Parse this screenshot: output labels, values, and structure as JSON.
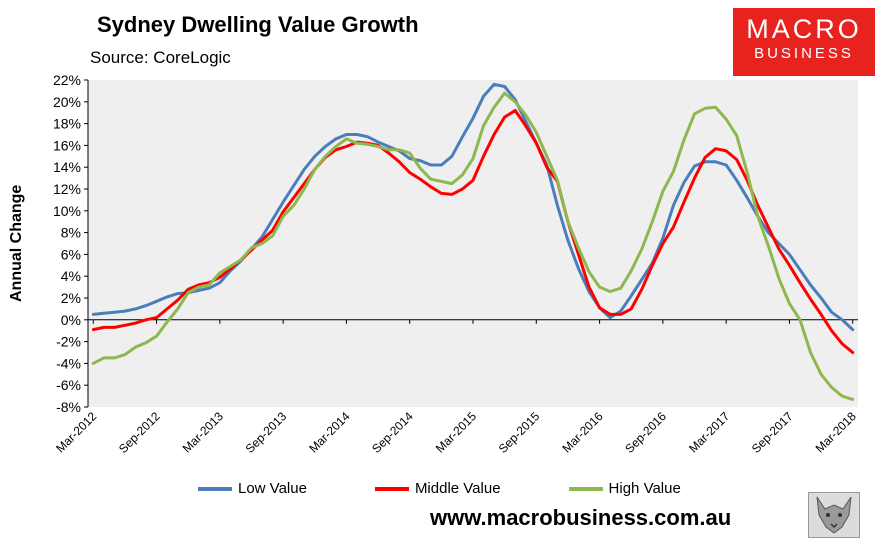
{
  "header": {
    "title": "Sydney Dwelling Value Growth",
    "subtitle": "Source: CoreLogic"
  },
  "logo": {
    "line1": "MACRO",
    "line2": "BUSINESS"
  },
  "footer": {
    "website": "www.macrobusiness.com.au"
  },
  "colors": {
    "low": "#4a7ebb",
    "middle": "#ff0000",
    "high": "#8cb84f",
    "brand": "#e8231f"
  },
  "chart_data": {
    "type": "line",
    "title": "Sydney Dwelling Value Growth",
    "ylabel": "Annual Change",
    "xlabel": "",
    "ylim": [
      -8,
      22
    ],
    "yticks": [
      "22%",
      "20%",
      "18%",
      "16%",
      "14%",
      "12%",
      "10%",
      "8%",
      "6%",
      "4%",
      "2%",
      "0%",
      "-2%",
      "-4%",
      "-6%",
      "-8%"
    ],
    "xticks": [
      "Mar-2012",
      "Sep-2012",
      "Mar-2013",
      "Sep-2013",
      "Mar-2014",
      "Sep-2014",
      "Mar-2015",
      "Sep-2015",
      "Mar-2016",
      "Sep-2016",
      "Mar-2017",
      "Sep-2017",
      "Mar-2018"
    ],
    "legend_position": "bottom",
    "grid": false,
    "series": [
      {
        "name": "Low Value",
        "values": [
          0.5,
          0.6,
          0.7,
          0.8,
          1.0,
          1.3,
          1.7,
          2.1,
          2.4,
          2.5,
          2.7,
          2.9,
          3.4,
          4.5,
          5.4,
          6.5,
          7.6,
          9.2,
          10.8,
          12.3,
          13.8,
          15.0,
          15.9,
          16.6,
          17.0,
          17.0,
          16.8,
          16.3,
          15.9,
          15.5,
          14.8,
          14.6,
          14.2,
          14.2,
          15.0,
          16.8,
          18.5,
          20.5,
          21.6,
          21.4,
          20.2,
          18.2,
          16.2,
          14.2,
          10.5,
          7.3,
          4.7,
          2.6,
          1.1,
          0.2,
          0.8,
          2.2,
          3.7,
          5.2,
          7.5,
          10.5,
          12.6,
          14.1,
          14.5,
          14.5,
          14.2,
          12.8,
          11.2,
          9.5,
          8.0,
          7.0,
          6.0,
          4.6,
          3.2,
          2.0,
          0.7,
          0.0,
          -0.9
        ]
      },
      {
        "name": "Middle Value",
        "values": [
          -0.9,
          -0.7,
          -0.7,
          -0.5,
          -0.3,
          0.0,
          0.2,
          1.0,
          1.8,
          2.8,
          3.2,
          3.4,
          3.9,
          4.7,
          5.5,
          6.4,
          7.3,
          8.2,
          9.9,
          11.2,
          12.5,
          13.8,
          14.9,
          15.6,
          15.9,
          16.3,
          16.2,
          16.0,
          15.3,
          14.5,
          13.5,
          12.9,
          12.2,
          11.6,
          11.5,
          12.0,
          12.8,
          15.0,
          17.0,
          18.6,
          19.2,
          17.8,
          16.2,
          14.0,
          12.7,
          9.0,
          6.0,
          3.0,
          1.1,
          0.5,
          0.5,
          1.0,
          2.8,
          5.0,
          7.0,
          8.5,
          10.8,
          13.0,
          14.9,
          15.7,
          15.5,
          14.7,
          12.8,
          10.5,
          8.5,
          6.5,
          5.0,
          3.4,
          1.9,
          0.5,
          -1.0,
          -2.2,
          -3.0
        ]
      },
      {
        "name": "High Value",
        "values": [
          -4.0,
          -3.5,
          -3.5,
          -3.2,
          -2.5,
          -2.1,
          -1.5,
          -0.2,
          1.0,
          2.5,
          3.0,
          3.2,
          4.3,
          4.9,
          5.5,
          6.6,
          7.0,
          7.7,
          9.5,
          10.5,
          12.0,
          13.8,
          15.0,
          15.9,
          16.6,
          16.2,
          16.1,
          15.9,
          15.6,
          15.6,
          15.3,
          13.9,
          12.9,
          12.7,
          12.5,
          13.3,
          14.8,
          17.8,
          19.5,
          20.8,
          20.0,
          18.8,
          17.2,
          15.0,
          12.8,
          9.0,
          6.6,
          4.4,
          3.0,
          2.6,
          2.9,
          4.5,
          6.5,
          9.0,
          11.8,
          13.6,
          16.5,
          18.9,
          19.4,
          19.5,
          18.4,
          16.9,
          13.5,
          9.5,
          6.8,
          3.8,
          1.5,
          0.0,
          -3.0,
          -5.0,
          -6.2,
          -7.0,
          -7.3
        ]
      }
    ]
  }
}
